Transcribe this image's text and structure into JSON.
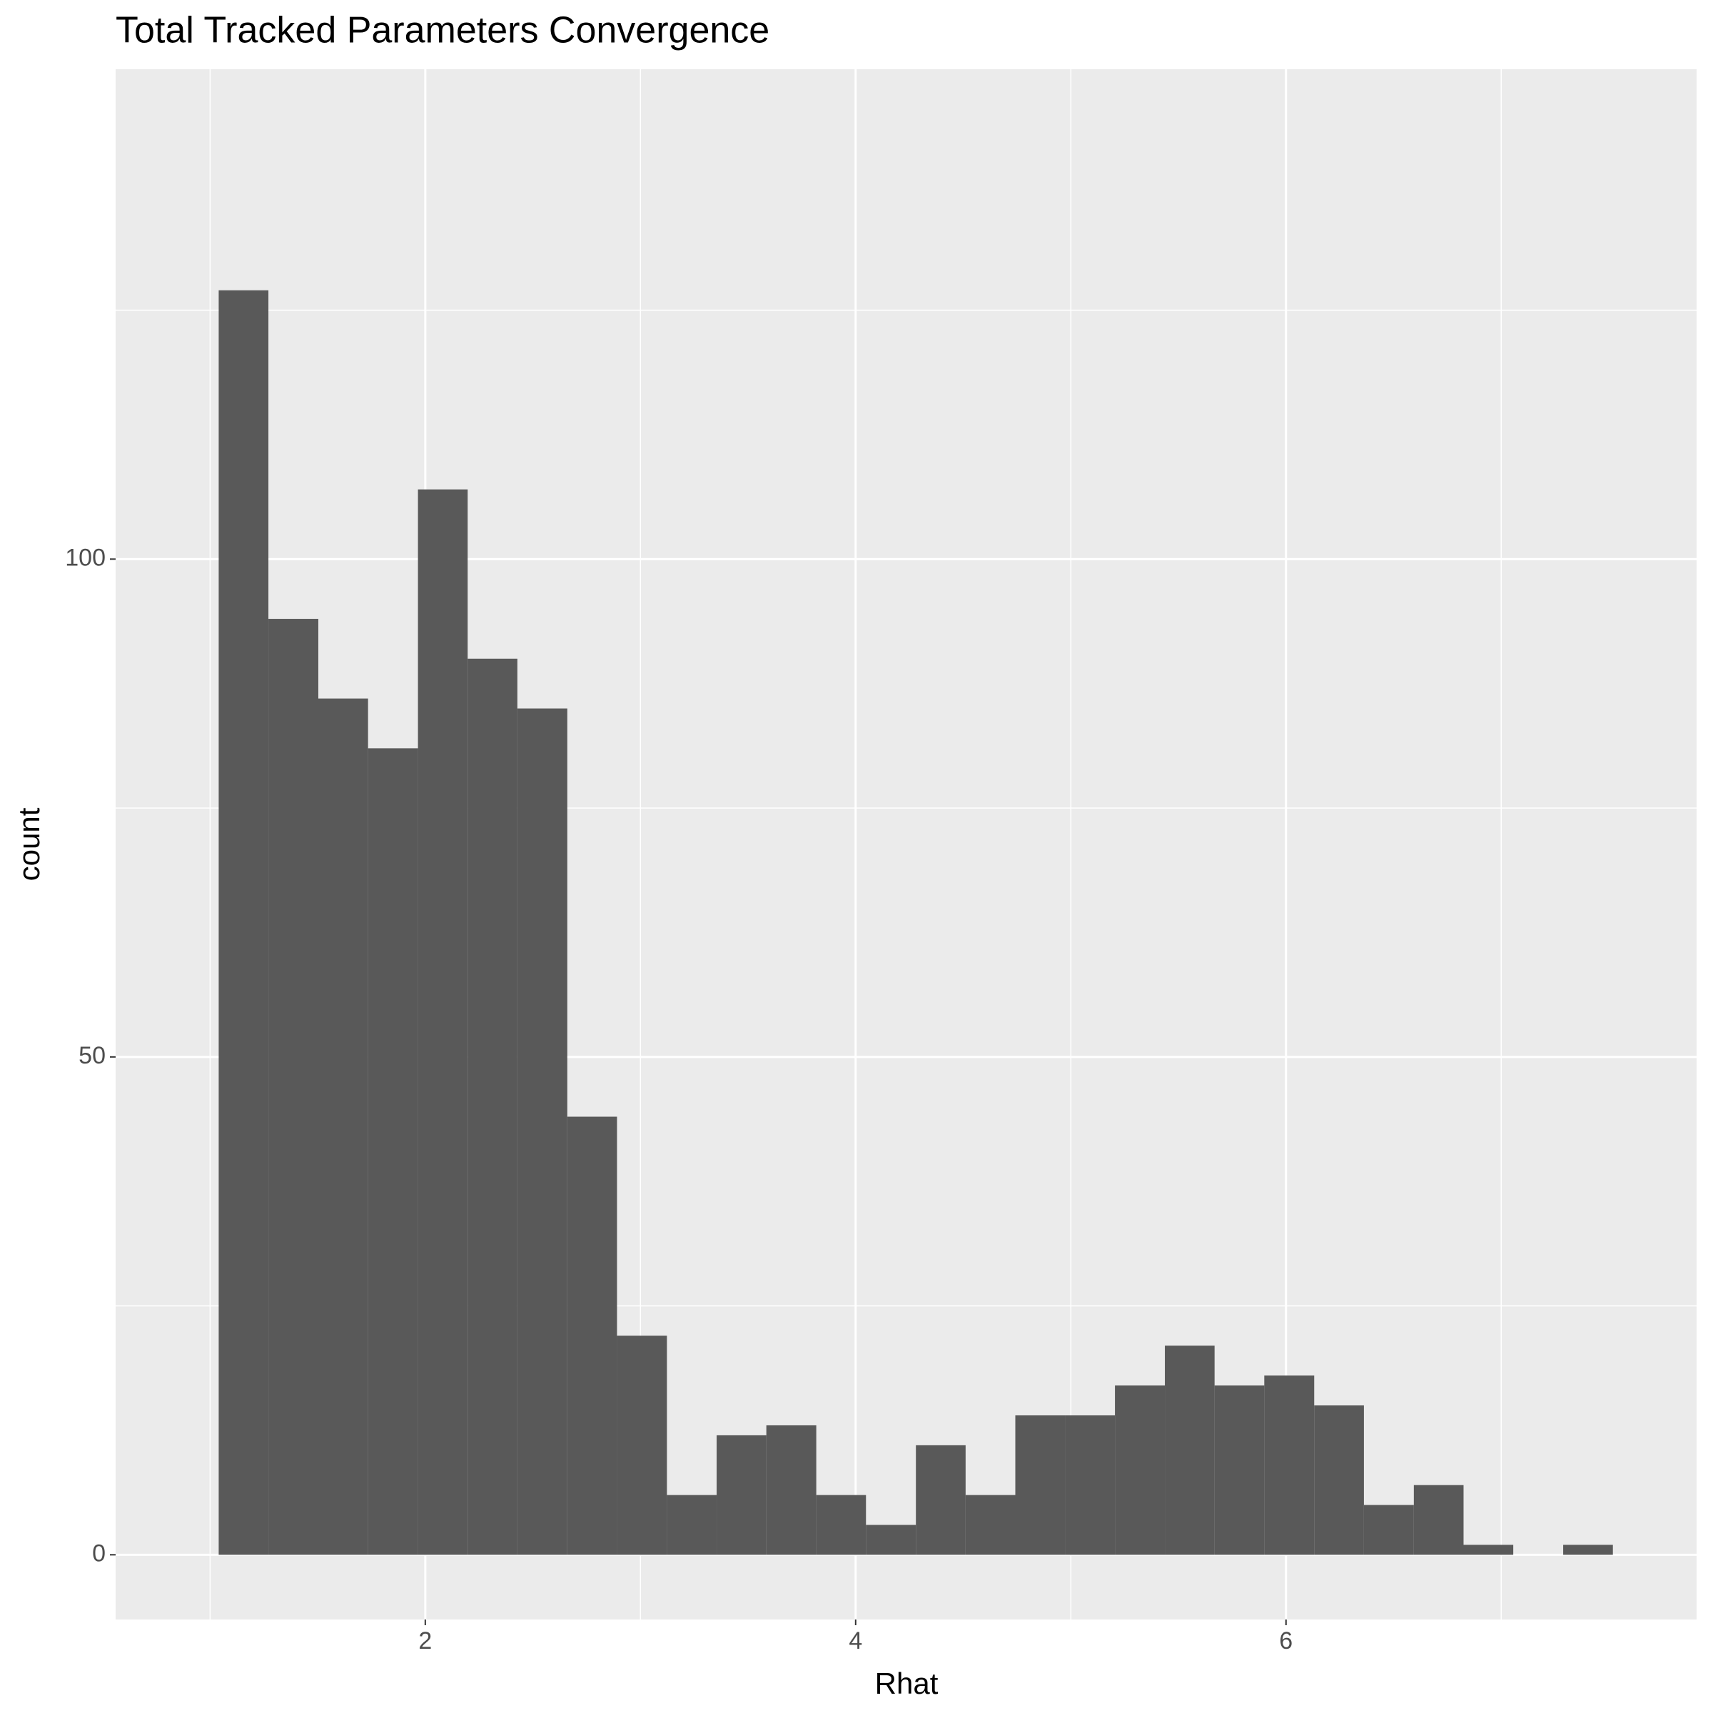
{
  "chart_data": {
    "type": "histogram",
    "title": "Total Tracked Parameters Convergence",
    "x_label": "Rhat",
    "y_label": "count",
    "bins": [
      1.04,
      1.271,
      1.503,
      1.734,
      1.966,
      2.197,
      2.428,
      2.66,
      2.891,
      3.123,
      3.354,
      3.585,
      3.817,
      4.048,
      4.28,
      4.511,
      4.742,
      4.974,
      5.205,
      5.437,
      5.668,
      5.899,
      6.131,
      6.362,
      6.594,
      6.825,
      7.056,
      7.288,
      7.519
    ],
    "values": [
      127,
      94,
      86,
      81,
      107,
      90,
      85,
      44,
      22,
      6,
      12,
      13,
      6,
      3,
      11,
      6,
      14,
      14,
      17,
      21,
      17,
      18,
      15,
      5,
      7,
      1,
      0,
      1
    ],
    "color": "#595959",
    "xlim": [
      0.561,
      7.908
    ],
    "xticks": [
      2,
      4,
      6
    ],
    "minor_xticks": [
      1,
      3,
      5,
      7
    ],
    "ylim": [
      -6.5,
      149.2
    ],
    "yticks": [
      0,
      50,
      100
    ],
    "minor_yticks": [
      25,
      75,
      125
    ],
    "grid": true
  }
}
